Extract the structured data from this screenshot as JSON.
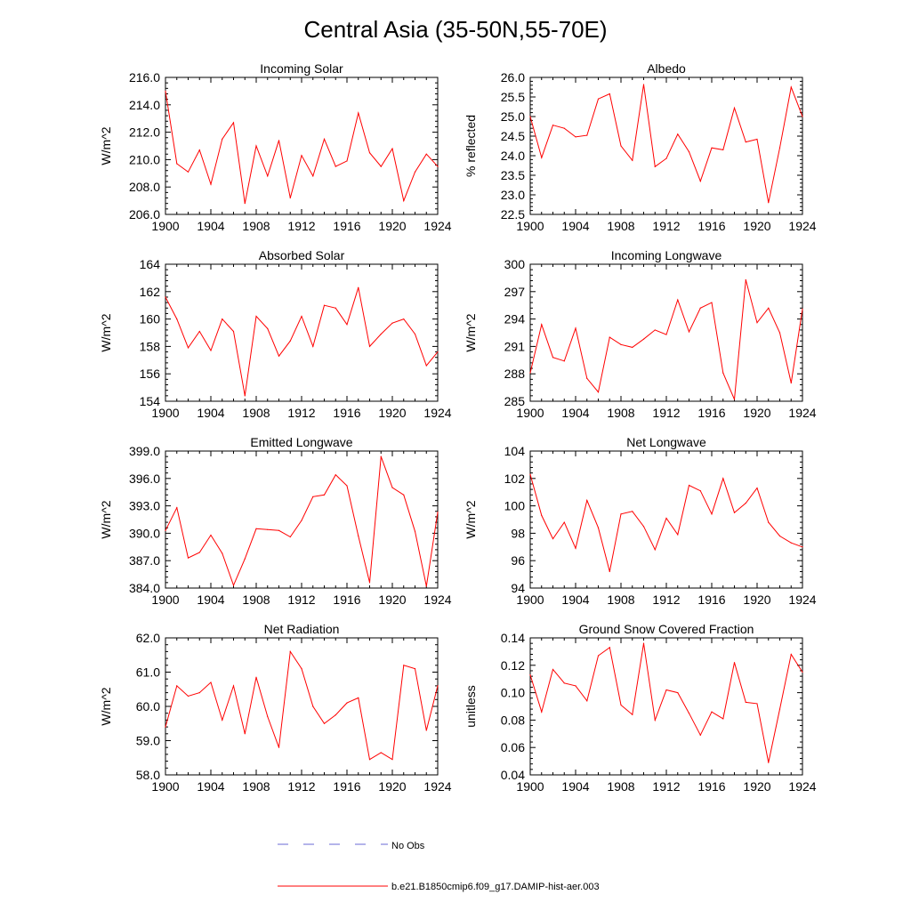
{
  "title": "Central Asia (35-50N,55-70E)",
  "colors": {
    "model": "#ff0000",
    "obs": "#6a6ad6",
    "axis": "#000000"
  },
  "legend": {
    "obs_label": "No Obs",
    "model_label": "b.e21.B1850cmip6.f09_g17.DAMIP-hist-aer.003"
  },
  "chart_data": [
    {
      "type": "line",
      "title": "Incoming Solar",
      "ylabel": "W/m^2",
      "xlim": [
        1900,
        1924
      ],
      "ylim": [
        206,
        216
      ],
      "xticks": [
        "1900",
        "1904",
        "1908",
        "1912",
        "1916",
        "1920",
        "1924"
      ],
      "yticks": [
        "206.0",
        "208.0",
        "210.0",
        "212.0",
        "214.0",
        "216.0"
      ],
      "x": [
        1900,
        1901,
        1902,
        1903,
        1904,
        1905,
        1906,
        1907,
        1908,
        1909,
        1910,
        1911,
        1912,
        1913,
        1914,
        1915,
        1916,
        1917,
        1918,
        1919,
        1920,
        1921,
        1922,
        1923,
        1924
      ],
      "series": [
        {
          "name": "b.e21.B1850cmip6.f09_g17.DAMIP-hist-aer.003",
          "values": [
            215.0,
            209.7,
            209.1,
            210.7,
            208.2,
            211.5,
            212.7,
            206.8,
            211.0,
            208.8,
            211.4,
            207.2,
            210.3,
            208.8,
            211.5,
            209.5,
            209.9,
            213.4,
            210.5,
            209.5,
            210.8,
            207.0,
            209.1,
            210.4,
            209.5
          ]
        }
      ]
    },
    {
      "type": "line",
      "title": "Albedo",
      "ylabel": "% reflected",
      "xlim": [
        1900,
        1924
      ],
      "ylim": [
        22.5,
        26.0
      ],
      "xticks": [
        "1900",
        "1904",
        "1908",
        "1912",
        "1916",
        "1920",
        "1924"
      ],
      "yticks": [
        "22.5",
        "23.0",
        "23.5",
        "24.0",
        "24.5",
        "25.0",
        "25.5",
        "26.0"
      ],
      "x": [
        1900,
        1901,
        1902,
        1903,
        1904,
        1905,
        1906,
        1907,
        1908,
        1909,
        1910,
        1911,
        1912,
        1913,
        1914,
        1915,
        1916,
        1917,
        1918,
        1919,
        1920,
        1921,
        1922,
        1923,
        1924
      ],
      "series": [
        {
          "name": "b.e21.B1850cmip6.f09_g17.DAMIP-hist-aer.003",
          "values": [
            25.0,
            23.95,
            24.78,
            24.7,
            24.48,
            24.52,
            25.45,
            25.58,
            24.25,
            23.88,
            25.82,
            23.72,
            23.93,
            24.55,
            24.1,
            23.35,
            24.2,
            24.15,
            25.22,
            24.35,
            24.42,
            22.8,
            24.2,
            25.75,
            25.0
          ]
        }
      ]
    },
    {
      "type": "line",
      "title": "Absorbed Solar",
      "ylabel": "W/m^2",
      "xlim": [
        1900,
        1924
      ],
      "ylim": [
        154,
        164
      ],
      "xticks": [
        "1900",
        "1904",
        "1908",
        "1912",
        "1916",
        "1920",
        "1924"
      ],
      "yticks": [
        "154",
        "156",
        "158",
        "160",
        "162",
        "164"
      ],
      "x": [
        1900,
        1901,
        1902,
        1903,
        1904,
        1905,
        1906,
        1907,
        1908,
        1909,
        1910,
        1911,
        1912,
        1913,
        1914,
        1915,
        1916,
        1917,
        1918,
        1919,
        1920,
        1921,
        1922,
        1923,
        1924
      ],
      "series": [
        {
          "name": "b.e21.B1850cmip6.f09_g17.DAMIP-hist-aer.003",
          "values": [
            161.6,
            160.0,
            157.9,
            159.1,
            157.7,
            160.0,
            159.1,
            154.4,
            160.2,
            159.3,
            157.3,
            158.4,
            160.2,
            158.0,
            161.0,
            160.8,
            159.6,
            162.3,
            158.0,
            158.9,
            159.7,
            160.0,
            158.9,
            156.6,
            157.6
          ]
        }
      ]
    },
    {
      "type": "line",
      "title": "Incoming Longwave",
      "ylabel": "W/m^2",
      "xlim": [
        1900,
        1924
      ],
      "ylim": [
        285,
        300
      ],
      "xticks": [
        "1900",
        "1904",
        "1908",
        "1912",
        "1916",
        "1920",
        "1924"
      ],
      "yticks": [
        "285",
        "288",
        "291",
        "294",
        "297",
        "300"
      ],
      "x": [
        1900,
        1901,
        1902,
        1903,
        1904,
        1905,
        1906,
        1907,
        1908,
        1909,
        1910,
        1911,
        1912,
        1913,
        1914,
        1915,
        1916,
        1917,
        1918,
        1919,
        1920,
        1921,
        1922,
        1923,
        1924
      ],
      "series": [
        {
          "name": "b.e21.B1850cmip6.f09_g17.DAMIP-hist-aer.003",
          "values": [
            288.1,
            293.4,
            289.8,
            289.4,
            293.0,
            287.5,
            286.0,
            292.0,
            291.2,
            290.9,
            291.8,
            292.8,
            292.3,
            296.1,
            292.6,
            295.2,
            295.8,
            288.1,
            285.2,
            298.3,
            293.6,
            295.2,
            292.5,
            287.0,
            295.1
          ]
        }
      ]
    },
    {
      "type": "line",
      "title": "Emitted Longwave",
      "ylabel": "W/m^2",
      "xlim": [
        1900,
        1924
      ],
      "ylim": [
        384,
        399
      ],
      "xticks": [
        "1900",
        "1904",
        "1908",
        "1912",
        "1916",
        "1920",
        "1924"
      ],
      "yticks": [
        "384.0",
        "387.0",
        "390.0",
        "393.0",
        "396.0",
        "399.0"
      ],
      "x": [
        1900,
        1901,
        1902,
        1903,
        1904,
        1905,
        1906,
        1907,
        1908,
        1909,
        1910,
        1911,
        1912,
        1913,
        1914,
        1915,
        1916,
        1917,
        1918,
        1919,
        1920,
        1921,
        1922,
        1923,
        1924
      ],
      "series": [
        {
          "name": "b.e21.B1850cmip6.f09_g17.DAMIP-hist-aer.003",
          "values": [
            390.3,
            392.8,
            387.3,
            387.9,
            389.8,
            387.8,
            384.3,
            387.2,
            390.5,
            390.4,
            390.3,
            389.6,
            391.4,
            394.0,
            394.2,
            396.4,
            395.2,
            389.7,
            384.6,
            398.4,
            395.0,
            394.2,
            390.2,
            384.2,
            392.3
          ]
        }
      ]
    },
    {
      "type": "line",
      "title": "Net Longwave",
      "ylabel": "W/m^2",
      "xlim": [
        1900,
        1924
      ],
      "ylim": [
        94,
        104
      ],
      "xticks": [
        "1900",
        "1904",
        "1908",
        "1912",
        "1916",
        "1920",
        "1924"
      ],
      "yticks": [
        "94",
        "96",
        "98",
        "100",
        "102",
        "104"
      ],
      "x": [
        1900,
        1901,
        1902,
        1903,
        1904,
        1905,
        1906,
        1907,
        1908,
        1909,
        1910,
        1911,
        1912,
        1913,
        1914,
        1915,
        1916,
        1917,
        1918,
        1919,
        1920,
        1921,
        1922,
        1923,
        1924
      ],
      "series": [
        {
          "name": "b.e21.B1850cmip6.f09_g17.DAMIP-hist-aer.003",
          "values": [
            102.3,
            99.3,
            97.6,
            98.8,
            96.9,
            100.4,
            98.4,
            95.2,
            99.4,
            99.6,
            98.5,
            96.8,
            99.1,
            97.9,
            101.5,
            101.1,
            99.4,
            102.0,
            99.5,
            100.2,
            101.3,
            98.8,
            97.8,
            97.3,
            97.0
          ]
        }
      ]
    },
    {
      "type": "line",
      "title": "Net Radiation",
      "ylabel": "W/m^2",
      "xlim": [
        1900,
        1924
      ],
      "ylim": [
        58,
        62
      ],
      "xticks": [
        "1900",
        "1904",
        "1908",
        "1912",
        "1916",
        "1920",
        "1924"
      ],
      "yticks": [
        "58.0",
        "59.0",
        "60.0",
        "61.0",
        "62.0"
      ],
      "x": [
        1900,
        1901,
        1902,
        1903,
        1904,
        1905,
        1906,
        1907,
        1908,
        1909,
        1910,
        1911,
        1912,
        1913,
        1914,
        1915,
        1916,
        1917,
        1918,
        1919,
        1920,
        1921,
        1922,
        1923,
        1924
      ],
      "series": [
        {
          "name": "b.e21.B1850cmip6.f09_g17.DAMIP-hist-aer.003",
          "values": [
            59.4,
            60.6,
            60.3,
            60.4,
            60.7,
            59.6,
            60.6,
            59.2,
            60.85,
            59.7,
            58.8,
            61.6,
            61.1,
            60.0,
            59.5,
            59.75,
            60.1,
            60.25,
            58.45,
            58.65,
            58.45,
            61.2,
            61.1,
            59.3,
            60.6
          ]
        }
      ]
    },
    {
      "type": "line",
      "title": "Ground Snow Covered Fraction",
      "ylabel": "unitless",
      "xlim": [
        1900,
        1924
      ],
      "ylim": [
        0.04,
        0.14
      ],
      "xticks": [
        "1900",
        "1904",
        "1908",
        "1912",
        "1916",
        "1920",
        "1924"
      ],
      "yticks": [
        "0.04",
        "0.06",
        "0.08",
        "0.10",
        "0.12",
        "0.14"
      ],
      "x": [
        1900,
        1901,
        1902,
        1903,
        1904,
        1905,
        1906,
        1907,
        1908,
        1909,
        1910,
        1911,
        1912,
        1913,
        1914,
        1915,
        1916,
        1917,
        1918,
        1919,
        1920,
        1921,
        1922,
        1923,
        1924
      ],
      "series": [
        {
          "name": "b.e21.B1850cmip6.f09_g17.DAMIP-hist-aer.003",
          "values": [
            0.113,
            0.086,
            0.117,
            0.107,
            0.105,
            0.094,
            0.127,
            0.133,
            0.091,
            0.084,
            0.136,
            0.08,
            0.102,
            0.1,
            0.085,
            0.069,
            0.086,
            0.081,
            0.122,
            0.093,
            0.092,
            0.049,
            0.088,
            0.128,
            0.115
          ]
        }
      ]
    }
  ]
}
